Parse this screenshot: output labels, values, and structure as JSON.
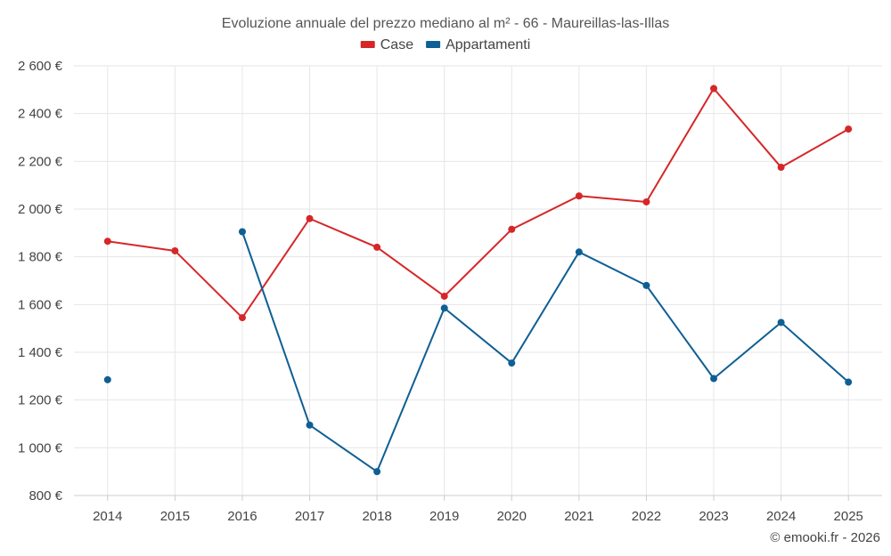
{
  "chart_data": {
    "type": "line",
    "title": "Evoluzione annuale del prezzo mediano al m² - 66 - Maureillas-las-Illas",
    "categories": [
      "2014",
      "2015",
      "2016",
      "2017",
      "2018",
      "2019",
      "2020",
      "2021",
      "2022",
      "2023",
      "2024",
      "2025"
    ],
    "ylim": [
      800,
      2600
    ],
    "yticks": [
      800,
      1000,
      1200,
      1400,
      1600,
      1800,
      2000,
      2200,
      2400,
      2600
    ],
    "ytick_labels": [
      "800 €",
      "1 000 €",
      "1 200 €",
      "1 400 €",
      "1 600 €",
      "1 800 €",
      "2 000 €",
      "2 200 €",
      "2 400 €",
      "2 600 €"
    ],
    "grid": true,
    "legend_position": "top-center",
    "series": [
      {
        "name": "Case",
        "color": "#d62728",
        "values": [
          1865,
          1825,
          1545,
          1960,
          1840,
          1635,
          1915,
          2055,
          2030,
          2505,
          2175,
          2335
        ]
      },
      {
        "name": "Appartamenti",
        "color": "#0e5f94",
        "values": [
          1285,
          null,
          1905,
          1095,
          900,
          1585,
          1355,
          1820,
          1680,
          1290,
          1525,
          1275
        ]
      }
    ]
  },
  "credit": "© emooki.fr - 2026"
}
